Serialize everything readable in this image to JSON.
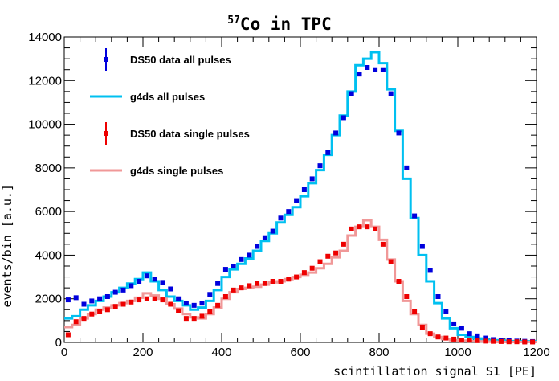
{
  "chart_data": {
    "type": "line",
    "title": "Co in TPC",
    "title_superscript": "57",
    "xlabel": "scintillation signal S1 [PE]",
    "ylabel": "events/bin [a.u.]",
    "xlim": [
      0,
      1200
    ],
    "ylim": [
      0,
      14000
    ],
    "x_ticks": [
      0,
      200,
      400,
      600,
      800,
      1000,
      1200
    ],
    "y_ticks": [
      0,
      2000,
      4000,
      6000,
      8000,
      10000,
      12000,
      14000
    ],
    "grid": false,
    "legend_position": "top-left",
    "bin_width": 20,
    "series": [
      {
        "name": "DS50 data all pulses",
        "style": "points",
        "color": "#0000dd",
        "x": [
          10,
          30,
          50,
          70,
          90,
          110,
          130,
          150,
          170,
          190,
          210,
          230,
          250,
          270,
          290,
          310,
          330,
          350,
          370,
          390,
          410,
          430,
          450,
          470,
          490,
          510,
          530,
          550,
          570,
          590,
          610,
          630,
          650,
          670,
          690,
          710,
          730,
          750,
          770,
          790,
          810,
          830,
          850,
          870,
          890,
          910,
          930,
          950,
          970,
          990,
          1010,
          1030,
          1050,
          1070,
          1090,
          1110,
          1130,
          1150,
          1170,
          1190
        ],
        "values": [
          1950,
          2050,
          1750,
          1900,
          2000,
          2100,
          2300,
          2400,
          2600,
          2800,
          3050,
          2900,
          2750,
          2450,
          2000,
          1800,
          1700,
          1800,
          2200,
          2700,
          3350,
          3500,
          3800,
          4000,
          4400,
          4800,
          5100,
          5700,
          6000,
          6500,
          7000,
          7500,
          8100,
          8700,
          9600,
          10300,
          11400,
          12300,
          12600,
          12500,
          12500,
          11400,
          9600,
          8000,
          5800,
          4400,
          3300,
          2100,
          1400,
          850,
          650,
          400,
          300,
          200,
          130,
          100,
          80,
          60,
          50,
          40
        ]
      },
      {
        "name": "g4ds all pulses",
        "style": "step",
        "color": "#00c0f0",
        "x": [
          10,
          30,
          50,
          70,
          90,
          110,
          130,
          150,
          170,
          190,
          210,
          230,
          250,
          270,
          290,
          310,
          330,
          350,
          370,
          390,
          410,
          430,
          450,
          470,
          490,
          510,
          530,
          550,
          570,
          590,
          610,
          630,
          650,
          670,
          690,
          710,
          730,
          750,
          770,
          790,
          810,
          830,
          850,
          870,
          890,
          910,
          930,
          950,
          970,
          990,
          1010,
          1030,
          1050,
          1070,
          1090,
          1110,
          1130,
          1150,
          1170,
          1190
        ],
        "values": [
          1100,
          1200,
          1500,
          1700,
          1900,
          2100,
          2300,
          2500,
          2700,
          2900,
          3200,
          2800,
          2400,
          2100,
          1900,
          1700,
          1500,
          1600,
          1900,
          2400,
          3000,
          3350,
          3600,
          3850,
          4200,
          4650,
          5000,
          5500,
          5850,
          6200,
          6700,
          7300,
          7900,
          8600,
          9500,
          10400,
          11500,
          12700,
          13000,
          13300,
          12800,
          11600,
          9700,
          7500,
          5700,
          4000,
          2800,
          1800,
          1100,
          650,
          350,
          250,
          180,
          120,
          100,
          80,
          60,
          50,
          50,
          50
        ]
      },
      {
        "name": "DS50 data single pulses",
        "style": "points",
        "color": "#ee0000",
        "x": [
          10,
          30,
          50,
          70,
          90,
          110,
          130,
          150,
          170,
          190,
          210,
          230,
          250,
          270,
          290,
          310,
          330,
          350,
          370,
          390,
          410,
          430,
          450,
          470,
          490,
          510,
          530,
          550,
          570,
          590,
          610,
          630,
          650,
          670,
          690,
          710,
          730,
          750,
          770,
          790,
          810,
          830,
          850,
          870,
          890,
          910,
          930,
          950,
          970,
          990,
          1010,
          1030,
          1050,
          1070,
          1090,
          1110,
          1130,
          1150,
          1170,
          1190
        ],
        "values": [
          350,
          950,
          1100,
          1300,
          1400,
          1500,
          1650,
          1750,
          1850,
          1950,
          2000,
          2000,
          1950,
          1750,
          1450,
          1100,
          1100,
          1200,
          1400,
          1700,
          2100,
          2400,
          2500,
          2600,
          2700,
          2700,
          2800,
          2800,
          2900,
          3000,
          3200,
          3400,
          3700,
          3950,
          4100,
          4500,
          5200,
          5300,
          5300,
          5200,
          4500,
          3700,
          2800,
          2100,
          1400,
          700,
          400,
          250,
          200,
          150,
          100,
          100,
          80,
          60,
          50,
          40,
          30,
          30,
          20,
          20
        ]
      },
      {
        "name": "g4ds single pulses",
        "style": "step",
        "color": "#f09898",
        "x": [
          10,
          30,
          50,
          70,
          90,
          110,
          130,
          150,
          170,
          190,
          210,
          230,
          250,
          270,
          290,
          310,
          330,
          350,
          370,
          390,
          410,
          430,
          450,
          470,
          490,
          510,
          530,
          550,
          570,
          590,
          610,
          630,
          650,
          670,
          690,
          710,
          730,
          750,
          770,
          790,
          810,
          830,
          850,
          870,
          890,
          910,
          930,
          950,
          970,
          990,
          1010,
          1030,
          1050,
          1070,
          1090,
          1110,
          1130,
          1150,
          1170,
          1190
        ],
        "values": [
          700,
          800,
          1100,
          1300,
          1500,
          1600,
          1700,
          1800,
          1900,
          2050,
          2250,
          2150,
          2000,
          1750,
          1550,
          1300,
          1150,
          1100,
          1300,
          1600,
          2000,
          2300,
          2450,
          2500,
          2550,
          2650,
          2750,
          2800,
          2900,
          3000,
          3100,
          3200,
          3400,
          3600,
          3900,
          4200,
          4900,
          5300,
          5600,
          5300,
          4700,
          3800,
          2800,
          1900,
          1300,
          800,
          400,
          250,
          150,
          100,
          80,
          60,
          50,
          40,
          30,
          20,
          20,
          20,
          20,
          20
        ]
      }
    ]
  }
}
